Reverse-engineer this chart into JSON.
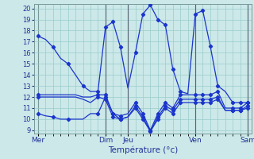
{
  "title": "Température (°c)",
  "background_color": "#cce8e8",
  "line_color": "#1a35cc",
  "grid_color": "#99cccc",
  "yticks": [
    9,
    10,
    11,
    12,
    13,
    14,
    15,
    16,
    17,
    18,
    19,
    20
  ],
  "day_labels": [
    "Mer",
    "Dim",
    "Jeu",
    "Ven",
    "Sam"
  ],
  "day_positions": [
    0,
    9,
    12,
    21,
    28
  ],
  "series": [
    [
      17.5,
      17.2,
      16.5,
      15.5,
      15.0,
      14.0,
      13.0,
      12.5,
      12.5,
      18.3,
      18.8,
      16.5,
      12.8,
      16.0,
      19.5,
      20.3,
      19.0,
      18.5,
      14.5,
      12.5,
      12.3,
      19.5,
      19.8,
      16.6,
      13.0,
      12.5,
      11.5,
      11.5,
      11.5
    ],
    [
      12.2,
      12.2,
      12.2,
      12.2,
      12.2,
      12.2,
      12.0,
      12.0,
      12.2,
      12.2,
      10.5,
      10.3,
      10.5,
      11.5,
      10.5,
      9.0,
      10.5,
      11.5,
      11.0,
      12.2,
      12.2,
      12.2,
      12.2,
      12.2,
      12.5,
      11.0,
      11.0,
      11.0,
      11.5
    ],
    [
      12.0,
      12.0,
      12.0,
      12.0,
      12.0,
      12.0,
      11.8,
      11.5,
      12.0,
      11.8,
      10.2,
      10.0,
      10.2,
      11.2,
      10.2,
      8.9,
      10.2,
      11.2,
      10.8,
      11.8,
      11.8,
      11.8,
      11.8,
      11.8,
      12.0,
      10.8,
      10.8,
      10.8,
      11.2
    ],
    [
      10.5,
      10.3,
      10.2,
      10.0,
      10.0,
      10.0,
      10.0,
      10.5,
      10.5,
      12.0,
      10.5,
      10.0,
      10.2,
      11.0,
      10.0,
      8.9,
      10.0,
      11.0,
      10.5,
      11.5,
      11.5,
      11.5,
      11.5,
      11.5,
      11.8,
      10.8,
      10.8,
      10.8,
      11.0
    ]
  ],
  "markers": [
    {
      "x": [
        0,
        2,
        4,
        6,
        8,
        9,
        10,
        11,
        13,
        14,
        15,
        16,
        17,
        18,
        19,
        21,
        22,
        23,
        24,
        26,
        27,
        28
      ],
      "y": [
        17.5,
        16.5,
        15.0,
        13.0,
        12.5,
        18.3,
        18.8,
        16.5,
        16.0,
        19.5,
        20.3,
        19.0,
        18.5,
        14.5,
        12.5,
        19.5,
        19.8,
        16.6,
        13.0,
        11.5,
        11.5,
        11.5
      ]
    },
    {
      "x": [
        0,
        8,
        9,
        10,
        11,
        13,
        14,
        15,
        16,
        17,
        18,
        19,
        21,
        22,
        23,
        24,
        26,
        27,
        28
      ],
      "y": [
        12.2,
        12.2,
        12.2,
        10.5,
        10.3,
        11.5,
        10.5,
        9.0,
        10.5,
        11.5,
        11.0,
        12.2,
        12.2,
        12.2,
        12.2,
        12.5,
        11.0,
        11.0,
        11.5
      ]
    },
    {
      "x": [
        0,
        8,
        9,
        10,
        11,
        13,
        14,
        15,
        16,
        17,
        18,
        19,
        21,
        22,
        23,
        24,
        26,
        27,
        28
      ],
      "y": [
        12.0,
        12.0,
        11.8,
        10.2,
        10.0,
        11.2,
        10.2,
        8.9,
        10.2,
        11.2,
        10.8,
        11.8,
        11.8,
        11.8,
        11.8,
        12.0,
        10.8,
        10.8,
        11.2
      ]
    },
    {
      "x": [
        0,
        2,
        4,
        8,
        9,
        10,
        11,
        13,
        14,
        15,
        16,
        17,
        18,
        19,
        21,
        22,
        23,
        24,
        26,
        27,
        28
      ],
      "y": [
        10.5,
        10.2,
        10.0,
        10.5,
        12.0,
        10.5,
        10.0,
        11.0,
        10.0,
        8.9,
        10.0,
        11.0,
        10.5,
        11.5,
        11.5,
        11.5,
        11.5,
        11.8,
        10.8,
        10.8,
        11.0
      ]
    }
  ],
  "ylabel_fontsize": 6.5,
  "xlabel_fontsize": 7.5,
  "tick_labelsize": 6
}
